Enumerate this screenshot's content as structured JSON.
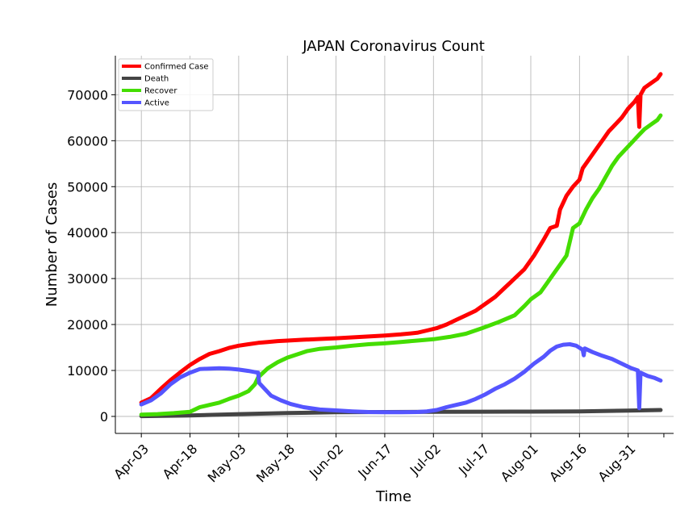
{
  "chart_data": {
    "type": "line",
    "title": "JAPAN Coronavirus Count",
    "xlabel": "Time",
    "ylabel": "Number of Cases",
    "x_tick_labels": [
      "Apr-03",
      "Apr-18",
      "May-03",
      "May-18",
      "Jun-02",
      "Jun-17",
      "Jul-02",
      "Jul-17",
      "Aug-01",
      "Aug-16",
      "Aug-31"
    ],
    "x_tick_days": [
      0,
      15,
      30,
      45,
      60,
      75,
      90,
      105,
      120,
      135,
      150
    ],
    "xlim_days": [
      -8,
      164
    ],
    "yticks": [
      0,
      10000,
      20000,
      30000,
      40000,
      50000,
      60000,
      70000
    ],
    "ylim": [
      -3700,
      78500
    ],
    "grid": true,
    "legend_position": "top-left",
    "series": [
      {
        "name": "Confirmed Case",
        "color": "#ff0000",
        "points": [
          [
            0,
            3000
          ],
          [
            3,
            4000
          ],
          [
            6,
            6000
          ],
          [
            9,
            7900
          ],
          [
            12,
            9600
          ],
          [
            15,
            11200
          ],
          [
            18,
            12500
          ],
          [
            21,
            13600
          ],
          [
            24,
            14200
          ],
          [
            27,
            14900
          ],
          [
            30,
            15400
          ],
          [
            33,
            15700
          ],
          [
            36,
            16000
          ],
          [
            39,
            16200
          ],
          [
            42,
            16400
          ],
          [
            45,
            16500
          ],
          [
            50,
            16700
          ],
          [
            55,
            16850
          ],
          [
            60,
            17000
          ],
          [
            65,
            17200
          ],
          [
            70,
            17400
          ],
          [
            75,
            17600
          ],
          [
            80,
            17850
          ],
          [
            85,
            18200
          ],
          [
            88,
            18700
          ],
          [
            91,
            19200
          ],
          [
            94,
            20000
          ],
          [
            97,
            21000
          ],
          [
            100,
            22000
          ],
          [
            103,
            23000
          ],
          [
            106,
            24500
          ],
          [
            109,
            26000
          ],
          [
            112,
            28000
          ],
          [
            115,
            30000
          ],
          [
            118,
            32000
          ],
          [
            121,
            35000
          ],
          [
            124,
            38500
          ],
          [
            126,
            41000
          ],
          [
            128,
            41500
          ],
          [
            129,
            45000
          ],
          [
            131,
            48000
          ],
          [
            133,
            50000
          ],
          [
            135,
            51500
          ],
          [
            136,
            54000
          ],
          [
            138,
            56000
          ],
          [
            140,
            58000
          ],
          [
            142,
            60000
          ],
          [
            144,
            62000
          ],
          [
            146,
            63500
          ],
          [
            148,
            65000
          ],
          [
            150,
            67000
          ],
          [
            152,
            68500
          ],
          [
            153,
            69500
          ],
          [
            153.4,
            63000
          ],
          [
            153.8,
            70000
          ],
          [
            155,
            71500
          ],
          [
            157,
            72500
          ],
          [
            159,
            73500
          ],
          [
            160,
            74500
          ]
        ]
      },
      {
        "name": "Death",
        "color": "#444444",
        "points": [
          [
            0,
            50
          ],
          [
            15,
            200
          ],
          [
            30,
            500
          ],
          [
            45,
            750
          ],
          [
            60,
            900
          ],
          [
            75,
            950
          ],
          [
            90,
            1000
          ],
          [
            105,
            1020
          ],
          [
            120,
            1050
          ],
          [
            135,
            1100
          ],
          [
            150,
            1250
          ],
          [
            160,
            1400
          ]
        ]
      },
      {
        "name": "Recover",
        "color": "#44dd00",
        "points": [
          [
            0,
            400
          ],
          [
            5,
            500
          ],
          [
            10,
            700
          ],
          [
            15,
            1000
          ],
          [
            18,
            2000
          ],
          [
            21,
            2500
          ],
          [
            24,
            3000
          ],
          [
            27,
            3800
          ],
          [
            30,
            4500
          ],
          [
            33,
            5500
          ],
          [
            35,
            7000
          ],
          [
            36,
            8500
          ],
          [
            39,
            10500
          ],
          [
            42,
            11800
          ],
          [
            45,
            12800
          ],
          [
            48,
            13500
          ],
          [
            51,
            14200
          ],
          [
            55,
            14700
          ],
          [
            60,
            15000
          ],
          [
            65,
            15400
          ],
          [
            70,
            15700
          ],
          [
            75,
            15900
          ],
          [
            80,
            16200
          ],
          [
            85,
            16500
          ],
          [
            90,
            16800
          ],
          [
            95,
            17300
          ],
          [
            100,
            18000
          ],
          [
            105,
            19200
          ],
          [
            110,
            20500
          ],
          [
            115,
            22000
          ],
          [
            118,
            24000
          ],
          [
            120,
            25500
          ],
          [
            123,
            27000
          ],
          [
            125,
            29000
          ],
          [
            127,
            31000
          ],
          [
            129,
            33000
          ],
          [
            131,
            35000
          ],
          [
            132,
            38000
          ],
          [
            133,
            41000
          ],
          [
            135,
            42000
          ],
          [
            137,
            45000
          ],
          [
            139,
            47500
          ],
          [
            141,
            49500
          ],
          [
            143,
            52000
          ],
          [
            145,
            54500
          ],
          [
            147,
            56500
          ],
          [
            149,
            58000
          ],
          [
            151,
            59500
          ],
          [
            153,
            61000
          ],
          [
            155,
            62500
          ],
          [
            157,
            63500
          ],
          [
            159,
            64500
          ],
          [
            160,
            65500
          ]
        ]
      },
      {
        "name": "Active",
        "color": "#5555ff",
        "points": [
          [
            0,
            2600
          ],
          [
            3,
            3500
          ],
          [
            6,
            5000
          ],
          [
            9,
            7000
          ],
          [
            12,
            8500
          ],
          [
            15,
            9500
          ],
          [
            18,
            10300
          ],
          [
            21,
            10400
          ],
          [
            24,
            10500
          ],
          [
            27,
            10400
          ],
          [
            30,
            10200
          ],
          [
            33,
            9900
          ],
          [
            36,
            9500
          ],
          [
            36.3,
            7300
          ],
          [
            38,
            6000
          ],
          [
            40,
            4500
          ],
          [
            43,
            3500
          ],
          [
            46,
            2700
          ],
          [
            50,
            2000
          ],
          [
            55,
            1500
          ],
          [
            60,
            1300
          ],
          [
            65,
            1100
          ],
          [
            70,
            950
          ],
          [
            75,
            900
          ],
          [
            80,
            900
          ],
          [
            85,
            950
          ],
          [
            88,
            1100
          ],
          [
            91,
            1400
          ],
          [
            94,
            2000
          ],
          [
            97,
            2500
          ],
          [
            100,
            3000
          ],
          [
            103,
            3800
          ],
          [
            106,
            4800
          ],
          [
            109,
            6000
          ],
          [
            112,
            7000
          ],
          [
            115,
            8200
          ],
          [
            118,
            9700
          ],
          [
            121,
            11500
          ],
          [
            124,
            13000
          ],
          [
            126,
            14300
          ],
          [
            128,
            15200
          ],
          [
            130,
            15600
          ],
          [
            132,
            15700
          ],
          [
            134,
            15400
          ],
          [
            136,
            14500
          ],
          [
            136.3,
            13300
          ],
          [
            136.6,
            14800
          ],
          [
            139,
            14000
          ],
          [
            142,
            13200
          ],
          [
            145,
            12500
          ],
          [
            148,
            11500
          ],
          [
            151,
            10500
          ],
          [
            153,
            10000
          ],
          [
            153.4,
            1800
          ],
          [
            153.8,
            9500
          ],
          [
            156,
            8800
          ],
          [
            158,
            8400
          ],
          [
            160,
            7800
          ]
        ]
      }
    ]
  }
}
